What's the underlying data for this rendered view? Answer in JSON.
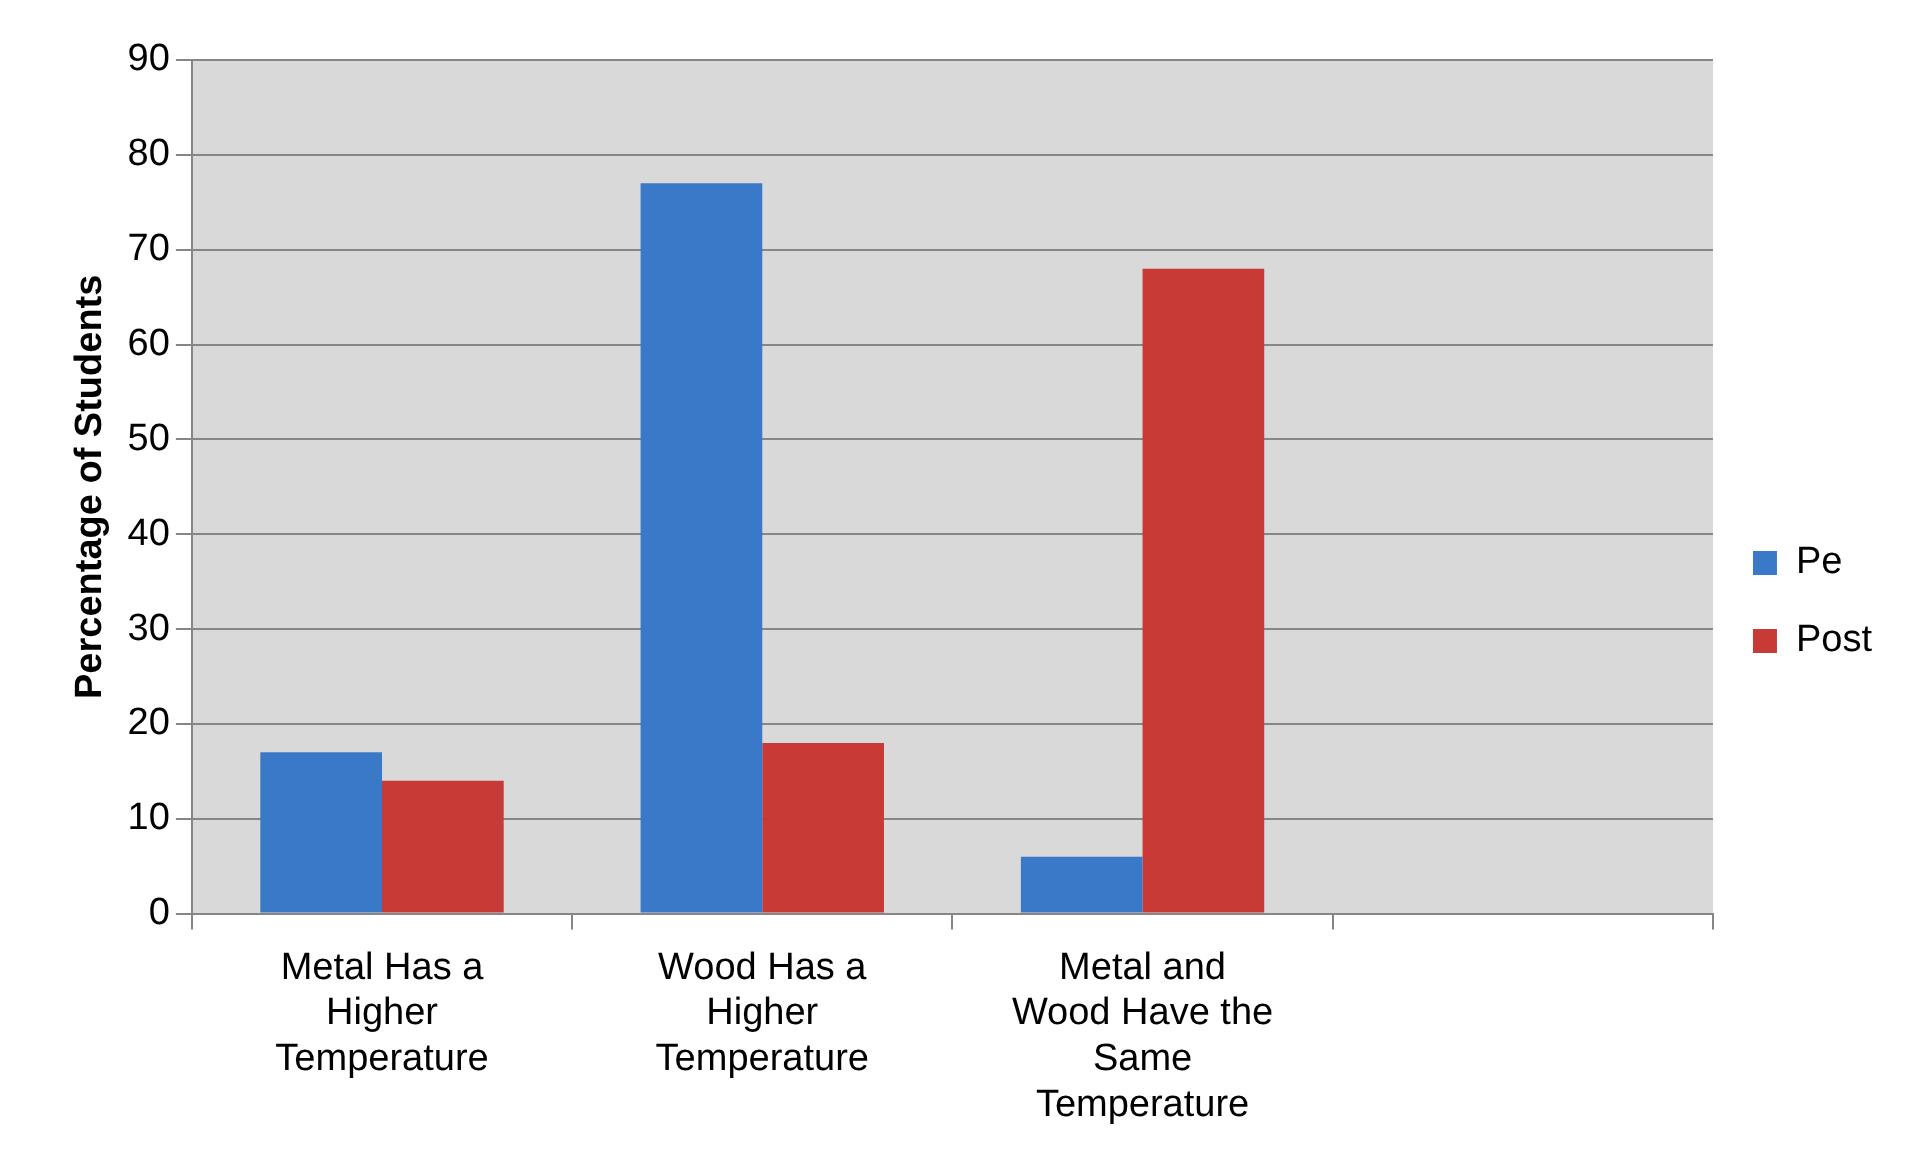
{
  "chart_data": {
    "type": "bar",
    "ylabel": "Percentage of Students",
    "categories": [
      "Metal Has a Higher Temperature",
      "Wood Has a Higher Temperature",
      "Metal and Wood Have the Same Temperature",
      null
    ],
    "series": [
      {
        "name": "Pe",
        "color": "#3a78c8",
        "values": [
          17,
          77,
          6,
          null
        ]
      },
      {
        "name": "Post",
        "color": "#c83a36",
        "values": [
          14,
          18,
          68,
          null
        ]
      }
    ],
    "ylim": [
      0,
      90
    ],
    "yticks": [
      0,
      10,
      20,
      30,
      40,
      50,
      60,
      70,
      80,
      90
    ],
    "grid": "y",
    "legend": "right"
  }
}
